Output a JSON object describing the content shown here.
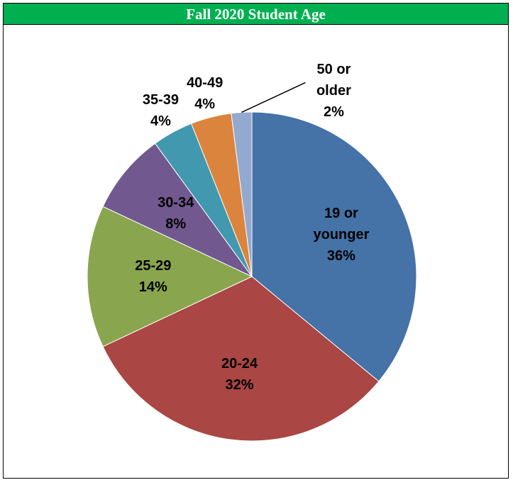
{
  "chart_data": {
    "type": "pie",
    "title": "Fall 2020 Student Age",
    "categories": [
      "19 or younger",
      "20-24",
      "25-29",
      "30-34",
      "35-39",
      "40-49",
      "50 or older"
    ],
    "values": [
      36,
      32,
      14,
      8,
      4,
      4,
      2
    ],
    "value_labels": [
      "36%",
      "32%",
      "14%",
      "8%",
      "4%",
      "4%",
      "2%"
    ],
    "colors": [
      "#4572a7",
      "#aa4643",
      "#89a54e",
      "#71588f",
      "#4198af",
      "#db843d",
      "#93a9cf"
    ]
  }
}
